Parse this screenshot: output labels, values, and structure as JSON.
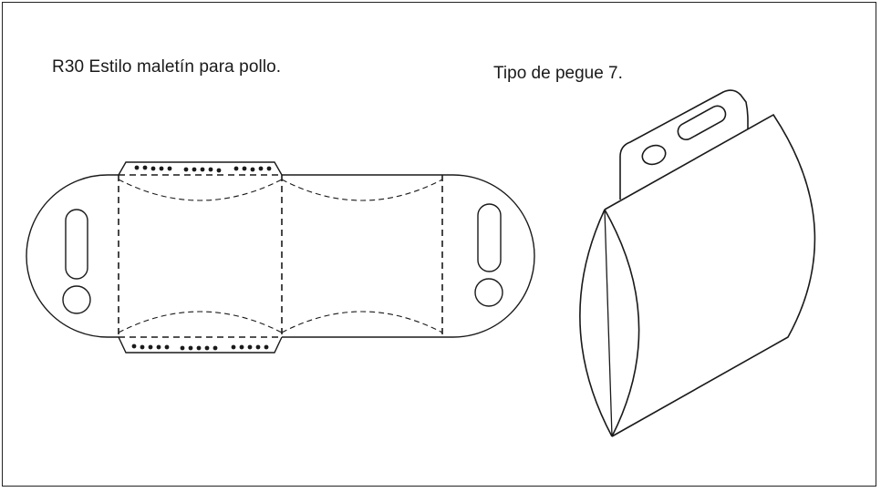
{
  "figure": {
    "title": "R30 Estilo maletín para pollo.",
    "subtitle": "Tipo de pegue 7."
  },
  "colors": {
    "line": "#1a1a1a",
    "background": "#ffffff"
  }
}
